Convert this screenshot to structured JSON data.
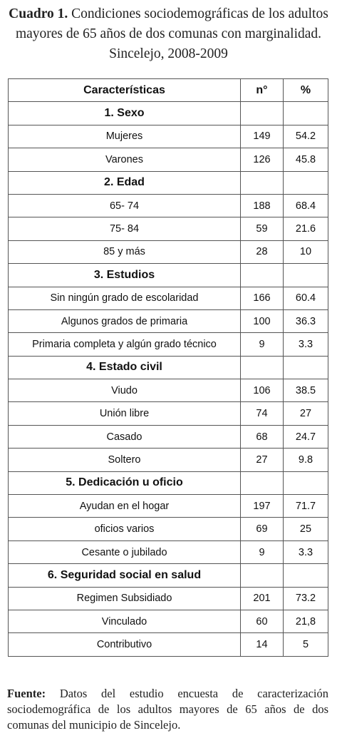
{
  "caption": {
    "label": "Cuadro 1.",
    "text": "Condiciones sociodemográficas de los adultos mayores de 65 años de dos comunas con marginalidad. Sincelejo, 2008-2009"
  },
  "table": {
    "header": [
      "Características",
      "n°",
      "%"
    ],
    "rows": [
      [
        "1. Sexo"
      ],
      [
        "Mujeres",
        "149",
        "54.2"
      ],
      [
        "Varones",
        "126",
        "45.8"
      ],
      [
        "2. Edad"
      ],
      [
        "65- 74",
        "188",
        "68.4"
      ],
      [
        "75- 84",
        "59",
        "21.6"
      ],
      [
        "85 y más",
        "28",
        "10"
      ],
      [
        "3. Estudios"
      ],
      [
        "Sin ningún grado de escolaridad",
        "166",
        "60.4"
      ],
      [
        "Algunos  grados de primaria",
        "100",
        "36.3"
      ],
      [
        "Primaria completa y algún grado técnico",
        "9",
        "3.3"
      ],
      [
        "4. Estado civil"
      ],
      [
        "Viudo",
        "106",
        "38.5"
      ],
      [
        "Unión libre",
        "74",
        "27"
      ],
      [
        "Casado",
        "68",
        "24.7"
      ],
      [
        "Soltero",
        "27",
        "9.8"
      ],
      [
        "5. Dedicación u oficio"
      ],
      [
        "Ayudan en el hogar",
        "197",
        "71.7"
      ],
      [
        "oficios varios",
        "69",
        "25"
      ],
      [
        "Cesante o jubilado",
        "9",
        "3.3"
      ],
      [
        "6. Seguridad social en salud"
      ],
      [
        "Regimen Subsidiado",
        "201",
        "73.2"
      ],
      [
        "Vinculado",
        "60",
        "21,8"
      ],
      [
        "Contributivo",
        "14",
        "5"
      ]
    ]
  },
  "footnote": {
    "label": "Fuente:",
    "text": "Datos del estudio encuesta de caracterización sociodemográfica de los adultos mayores de 65 años de dos comunas del municipio de Sincelejo."
  }
}
